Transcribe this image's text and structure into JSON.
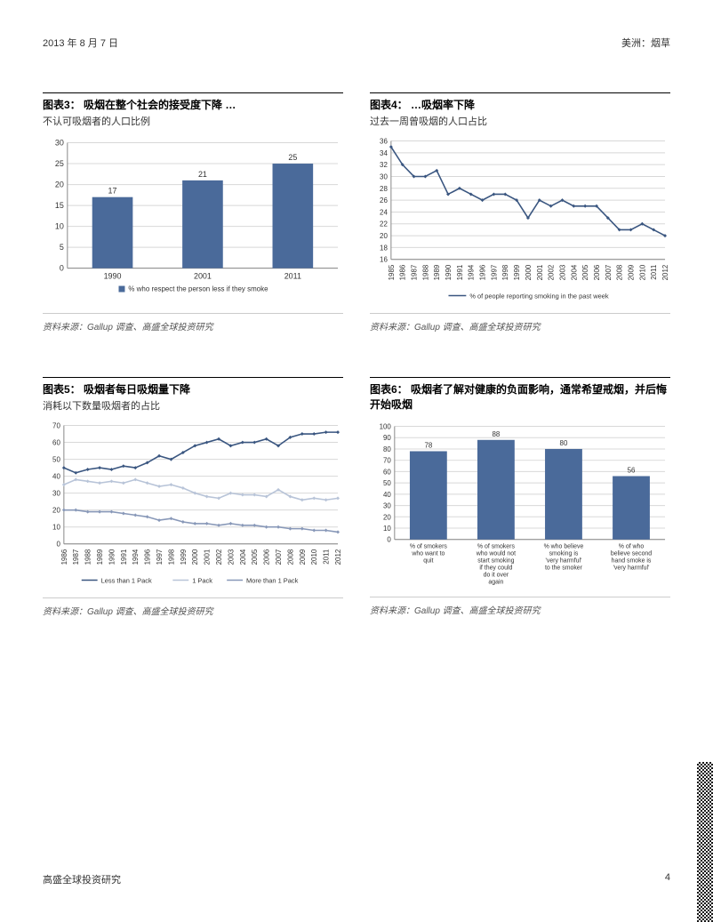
{
  "header": {
    "date": "2013 年 8 月 7 日",
    "right": "美洲：烟草"
  },
  "footer": {
    "left": "高盛全球投资研究",
    "page": "4"
  },
  "colors": {
    "bar": "#4a6a9a",
    "line_dark": "#3a5680",
    "line_light": "#b8c4d8",
    "line_mid": "#8898b8",
    "axis": "#888888",
    "grid": "#d8d8d8",
    "text": "#333333",
    "legend_box": "#4a6a9a"
  },
  "chart3": {
    "title": "图表3：  吸烟在整个社会的接受度下降 …",
    "subtitle": "不认可吸烟者的人口比例",
    "source": "资料来源：Gallup 调查、高盛全球投资研究",
    "type": "bar",
    "categories": [
      "1990",
      "2001",
      "2011"
    ],
    "values": [
      17,
      21,
      25
    ],
    "ylim": [
      0,
      30
    ],
    "ytick_step": 5,
    "bar_width": 0.45,
    "legend": "% who respect the person less if they smoke",
    "label_fontsize": 9
  },
  "chart4": {
    "title": "图表4：  …吸烟率下降",
    "subtitle": "过去一周曾吸烟的人口占比",
    "source": "资料来源：Gallup 调查、高盛全球投资研究",
    "type": "line",
    "years": [
      "1985",
      "1986",
      "1987",
      "1988",
      "1989",
      "1990",
      "1991",
      "1994",
      "1996",
      "1997",
      "1998",
      "1999",
      "2000",
      "2001",
      "2002",
      "2003",
      "2004",
      "2005",
      "2006",
      "2007",
      "2008",
      "2009",
      "2010",
      "2011",
      "2012"
    ],
    "values": [
      35,
      32,
      30,
      30,
      31,
      27,
      28,
      27,
      26,
      27,
      27,
      26,
      23,
      26,
      25,
      26,
      25,
      25,
      25,
      23,
      21,
      21,
      22,
      21,
      20
    ],
    "ylim": [
      16,
      36
    ],
    "ytick_step": 2,
    "legend": "% of people reporting smoking in the past week",
    "label_fontsize": 8
  },
  "chart5": {
    "title": "图表5：  吸烟者每日吸烟量下降",
    "subtitle": "消耗以下数量吸烟者的占比",
    "source": "资料来源：Gallup 调查、高盛全球投资研究",
    "type": "multiline",
    "years": [
      "1986",
      "1987",
      "1988",
      "1989",
      "1990",
      "1991",
      "1994",
      "1996",
      "1997",
      "1998",
      "1999",
      "2000",
      "2001",
      "2002",
      "2003",
      "2004",
      "2005",
      "2006",
      "2007",
      "2008",
      "2009",
      "2010",
      "2011",
      "2012"
    ],
    "series": [
      {
        "name": "Less than 1 Pack",
        "color_key": "line_dark",
        "values": [
          45,
          42,
          44,
          45,
          44,
          46,
          45,
          48,
          52,
          50,
          54,
          58,
          60,
          62,
          58,
          60,
          60,
          62,
          58,
          63,
          65,
          65,
          66,
          66
        ]
      },
      {
        "name": "1 Pack",
        "color_key": "line_light",
        "values": [
          35,
          38,
          37,
          36,
          37,
          36,
          38,
          36,
          34,
          35,
          33,
          30,
          28,
          27,
          30,
          29,
          29,
          28,
          32,
          28,
          26,
          27,
          26,
          27
        ]
      },
      {
        "name": "More than 1 Pack",
        "color_key": "line_mid",
        "values": [
          20,
          20,
          19,
          19,
          19,
          18,
          17,
          16,
          14,
          15,
          13,
          12,
          12,
          11,
          12,
          11,
          11,
          10,
          10,
          9,
          9,
          8,
          8,
          7
        ]
      }
    ],
    "ylim": [
      0,
      70
    ],
    "ytick_step": 10,
    "label_fontsize": 8
  },
  "chart6": {
    "title": "图表6：  吸烟者了解对健康的负面影响，通常希望戒烟，并后悔开始吸烟",
    "subtitle": "",
    "source": "资料来源：Gallup 调查、高盛全球投资研究",
    "type": "bar",
    "categories": [
      "% of smokers who want to quit",
      "% of smokers who would not start smoking if they could do it over again",
      "% who believe smoking is 'very harmful' to the smoker",
      "% of who believe second hand smoke is 'very harmful'"
    ],
    "values": [
      78,
      88,
      80,
      56
    ],
    "ylim": [
      0,
      100
    ],
    "ytick_step": 10,
    "bar_width": 0.55,
    "label_fontsize": 8
  }
}
